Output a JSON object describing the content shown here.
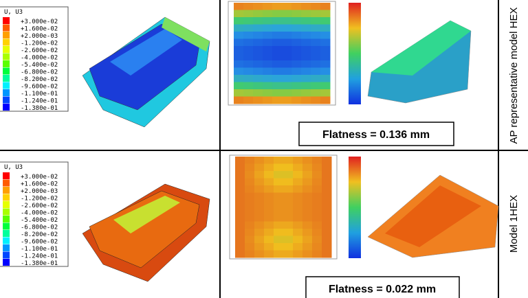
{
  "panels": [
    {
      "legend": {
        "title": "U, U3",
        "labels": [
          "+3.000e-02",
          "+1.600e-02",
          "+2.000e-03",
          "-1.200e-02",
          "-2.600e-02",
          "-4.000e-02",
          "-5.400e-02",
          "-6.800e-02",
          "-8.200e-02",
          "-9.600e-02",
          "-1.100e-01",
          "-1.240e-01",
          "-1.380e-01"
        ]
      },
      "flatness": "Flatness = 0.136 mm",
      "side_label": "AP representative model HEX"
    },
    {
      "legend": {
        "title": "U, U3",
        "labels": [
          "+3.000e-02",
          "+1.600e-02",
          "+2.000e-03",
          "-1.200e-02",
          "-2.600e-02",
          "-4.000e-02",
          "-5.400e-02",
          "-6.800e-02",
          "-8.200e-02",
          "-9.600e-02",
          "-1.100e-01",
          "-1.240e-01",
          "-1.380e-01"
        ]
      },
      "flatness": "Flatness = 0.022 mm",
      "side_label": "Model 1HEX"
    }
  ]
}
